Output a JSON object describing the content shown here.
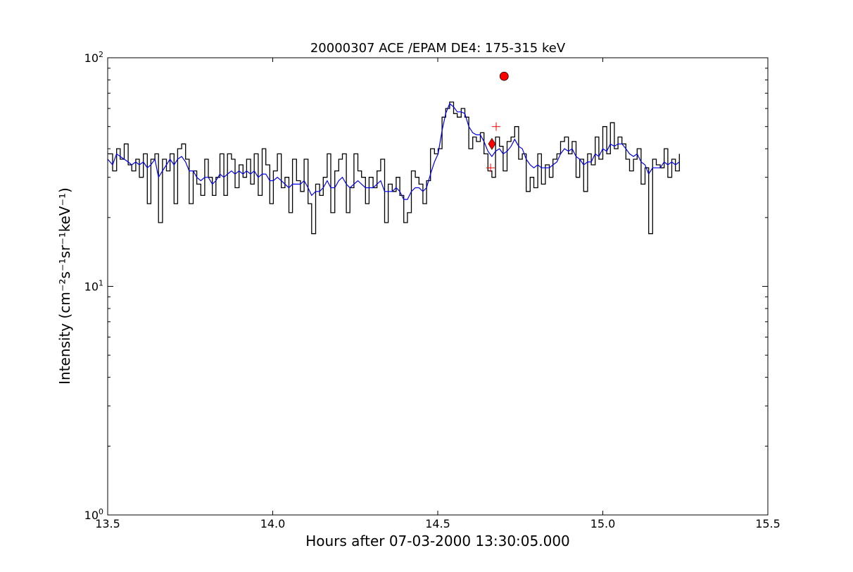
{
  "chart_data": {
    "type": "line",
    "title": "20000307 ACE /EPAM DE4: 175-315 keV",
    "xlabel": "Hours after 07-03-2000 13:30:05.000",
    "ylabel": "Intensity (cm⁻²s⁻¹sr⁻¹keV⁻¹)",
    "xlim": [
      13.5,
      15.5
    ],
    "ylim": [
      1,
      100
    ],
    "yscale": "log",
    "grid": false,
    "x_ticks": [
      13.5,
      14.0,
      14.5,
      15.0,
      15.5
    ],
    "x_tick_labels": [
      "13.5",
      "14.0",
      "14.5",
      "15.0",
      "15.5"
    ],
    "y_ticks": [
      1,
      10,
      100
    ],
    "y_tick_bases": [
      "10",
      "10",
      "10"
    ],
    "y_tick_exps": [
      "0",
      "1",
      "2"
    ],
    "series": [
      {
        "color": "#000000",
        "style": "steps",
        "x": [
          13.5,
          13.515,
          13.527,
          13.538,
          13.55,
          13.562,
          13.573,
          13.585,
          13.596,
          13.608,
          13.62,
          13.631,
          13.643,
          13.654,
          13.666,
          13.678,
          13.689,
          13.701,
          13.712,
          13.724,
          13.736,
          13.747,
          13.759,
          13.77,
          13.782,
          13.794,
          13.805,
          13.817,
          13.828,
          13.84,
          13.852,
          13.863,
          13.875,
          13.886,
          13.898,
          13.91,
          13.921,
          13.933,
          13.944,
          13.956,
          13.968,
          13.979,
          13.991,
          14.002,
          14.014,
          14.026,
          14.037,
          14.049,
          14.06,
          14.072,
          14.084,
          14.095,
          14.107,
          14.118,
          14.13,
          14.142,
          14.153,
          14.165,
          14.176,
          14.188,
          14.2,
          14.211,
          14.223,
          14.234,
          14.246,
          14.258,
          14.269,
          14.281,
          14.292,
          14.304,
          14.316,
          14.327,
          14.339,
          14.35,
          14.362,
          14.374,
          14.385,
          14.397,
          14.408,
          14.42,
          14.432,
          14.443,
          14.455,
          14.466,
          14.478,
          14.49,
          14.501,
          14.513,
          14.524,
          14.536,
          14.548,
          14.559,
          14.571,
          14.582,
          14.594,
          14.606,
          14.617,
          14.629,
          14.64,
          14.652,
          14.664,
          14.675,
          14.687,
          14.698,
          14.71,
          14.722,
          14.733,
          14.745,
          14.756,
          14.768,
          14.78,
          14.791,
          14.803,
          14.814,
          14.826,
          14.838,
          14.849,
          14.861,
          14.872,
          14.884,
          14.896,
          14.907,
          14.919,
          14.93,
          14.942,
          14.954,
          14.965,
          14.977,
          14.988,
          15.0,
          15.012,
          15.023,
          15.035,
          15.046,
          15.058,
          15.07,
          15.081,
          15.093,
          15.104,
          15.116,
          15.128,
          15.139,
          15.151,
          15.162,
          15.174,
          15.186,
          15.197,
          15.209,
          15.22,
          15.232
        ],
        "y": [
          38,
          32,
          40,
          36,
          42,
          34,
          32,
          36,
          30,
          38,
          23,
          36,
          38,
          19,
          36,
          32,
          38,
          23,
          40,
          42,
          36,
          23,
          32,
          28,
          25,
          36,
          30,
          25,
          30,
          38,
          25,
          38,
          36,
          27,
          34,
          30,
          36,
          28,
          38,
          25,
          40,
          34,
          23,
          32,
          38,
          27,
          30,
          21,
          36,
          29,
          26,
          36,
          23,
          17,
          28,
          25,
          30,
          38,
          21,
          32,
          36,
          38,
          21,
          27,
          38,
          32,
          30,
          23,
          30,
          27,
          32,
          36,
          19,
          28,
          26,
          30,
          25,
          19,
          21,
          32,
          30,
          28,
          23,
          29,
          40,
          38,
          40,
          55,
          60,
          64,
          57,
          55,
          60,
          55,
          40,
          45,
          43,
          47,
          38,
          32,
          30,
          45,
          41,
          32,
          43,
          45,
          50,
          36,
          38,
          26,
          30,
          27,
          38,
          28,
          34,
          30,
          36,
          38,
          43,
          45,
          38,
          43,
          30,
          36,
          26,
          38,
          34,
          45,
          36,
          50,
          38,
          52,
          40,
          45,
          42,
          36,
          32,
          36,
          40,
          28,
          33,
          17,
          36,
          34,
          33,
          40,
          30,
          36,
          32,
          38
        ]
      },
      {
        "color": "#0000ee",
        "style": "line",
        "x": [
          13.5,
          13.515,
          13.527,
          13.538,
          13.55,
          13.562,
          13.573,
          13.585,
          13.596,
          13.608,
          13.62,
          13.631,
          13.643,
          13.654,
          13.666,
          13.678,
          13.689,
          13.701,
          13.712,
          13.724,
          13.736,
          13.747,
          13.759,
          13.77,
          13.782,
          13.794,
          13.805,
          13.817,
          13.828,
          13.84,
          13.852,
          13.863,
          13.875,
          13.886,
          13.898,
          13.91,
          13.921,
          13.933,
          13.944,
          13.956,
          13.968,
          13.979,
          13.991,
          14.002,
          14.014,
          14.026,
          14.037,
          14.049,
          14.06,
          14.072,
          14.084,
          14.095,
          14.107,
          14.118,
          14.13,
          14.142,
          14.153,
          14.165,
          14.176,
          14.188,
          14.2,
          14.211,
          14.223,
          14.234,
          14.246,
          14.258,
          14.269,
          14.281,
          14.292,
          14.304,
          14.316,
          14.327,
          14.339,
          14.35,
          14.362,
          14.374,
          14.385,
          14.397,
          14.408,
          14.42,
          14.432,
          14.443,
          14.455,
          14.466,
          14.478,
          14.49,
          14.501,
          14.513,
          14.524,
          14.536,
          14.548,
          14.559,
          14.571,
          14.582,
          14.594,
          14.606,
          14.617,
          14.629,
          14.64,
          14.652,
          14.664,
          14.675,
          14.687,
          14.698,
          14.71,
          14.722,
          14.733,
          14.745,
          14.756,
          14.768,
          14.78,
          14.791,
          14.803,
          14.814,
          14.826,
          14.838,
          14.849,
          14.861,
          14.872,
          14.884,
          14.896,
          14.907,
          14.919,
          14.93,
          14.942,
          14.954,
          14.965,
          14.977,
          14.988,
          15.0,
          15.012,
          15.023,
          15.035,
          15.046,
          15.058,
          15.07,
          15.081,
          15.093,
          15.104,
          15.116,
          15.128,
          15.139,
          15.151,
          15.162,
          15.174,
          15.186,
          15.197,
          15.209,
          15.22,
          15.232
        ],
        "y": [
          36,
          34,
          38,
          37,
          36,
          35,
          34,
          35,
          34,
          35,
          33,
          34,
          36,
          30,
          32,
          34,
          36,
          34,
          36,
          37,
          35,
          32,
          32,
          30,
          29,
          30,
          30,
          28,
          29,
          31,
          30,
          31,
          32,
          31,
          32,
          31,
          32,
          31,
          32,
          30,
          31,
          31,
          29,
          29,
          30,
          29,
          28,
          27,
          28,
          28,
          28,
          29,
          27,
          25,
          26,
          26,
          27,
          29,
          27,
          27,
          29,
          30,
          28,
          27,
          28,
          29,
          28,
          27,
          27,
          27,
          28,
          29,
          26,
          26,
          26,
          27,
          26,
          24,
          24,
          26,
          27,
          27,
          26,
          27,
          31,
          35,
          38,
          48,
          57,
          63,
          61,
          58,
          58,
          57,
          50,
          47,
          46,
          46,
          43,
          39,
          37,
          39,
          40,
          38,
          39,
          41,
          44,
          41,
          40,
          36,
          34,
          33,
          34,
          33,
          33,
          33,
          34,
          35,
          38,
          40,
          39,
          40,
          37,
          36,
          34,
          35,
          35,
          38,
          37,
          40,
          39,
          42,
          41,
          42,
          42,
          40,
          38,
          37,
          38,
          35,
          34,
          31,
          33,
          33,
          33,
          35,
          34,
          35,
          34,
          35
        ]
      }
    ],
    "markers": [
      {
        "shape": "circle",
        "x": 14.701,
        "y": 83,
        "color": "#ff0000"
      },
      {
        "shape": "diamond",
        "x": 14.664,
        "y": 42,
        "color": "#ff0000"
      },
      {
        "shape": "plus",
        "x": 14.677,
        "y": 50,
        "color": "#ff0000"
      },
      {
        "shape": "plus",
        "x": 14.66,
        "y": 33,
        "color": "#ff0000"
      }
    ]
  }
}
